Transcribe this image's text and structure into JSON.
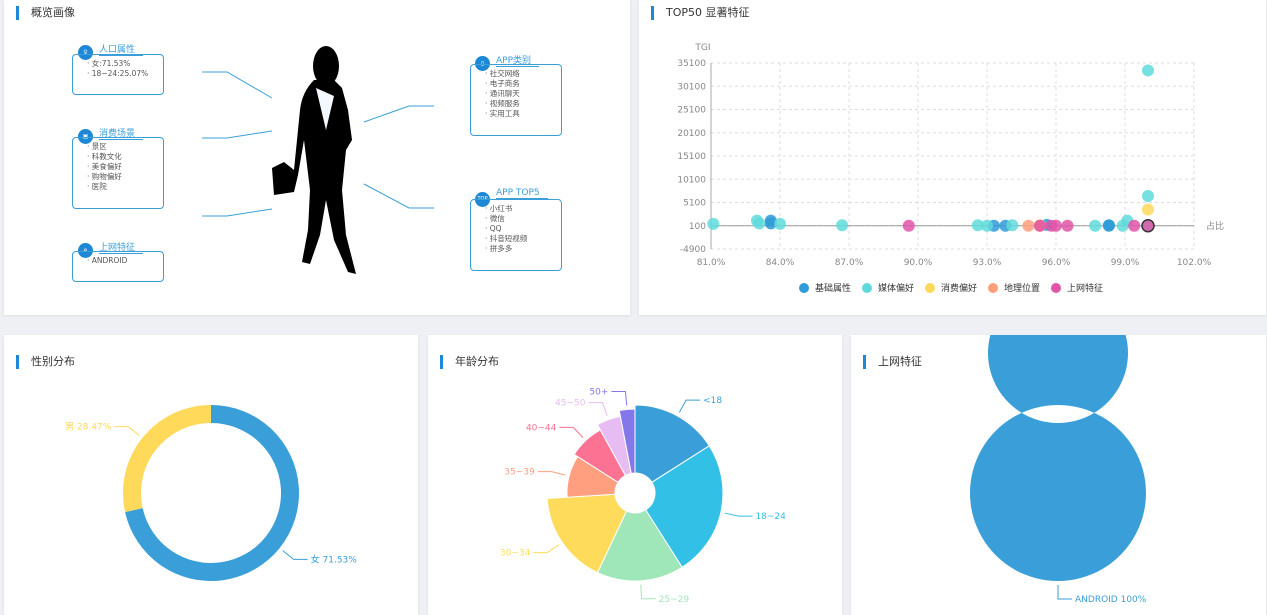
{
  "overview": {
    "title": "概览画像",
    "population": {
      "title": "人口属性",
      "items": [
        "女:71.53%",
        "18~24:25.07%"
      ]
    },
    "consumption": {
      "title": "消费场景",
      "items": [
        "景区",
        "科教文化",
        "美食偏好",
        "购物偏好",
        "医院"
      ]
    },
    "network": {
      "title": "上网特征",
      "items": [
        "ANDROID"
      ]
    },
    "app_category": {
      "title": "APP类别",
      "items": [
        "社交网络",
        "电子商务",
        "通讯聊天",
        "视频服务",
        "实用工具"
      ]
    },
    "app_top5": {
      "title": "APP TOP5",
      "icon_text": "TOP",
      "items": [
        "小红书",
        "微信",
        "QQ",
        "抖音短视频",
        "拼多多"
      ]
    }
  },
  "top50": {
    "title": "TOP50 显著特征"
  },
  "gender": {
    "title": "性别分布"
  },
  "age": {
    "title": "年龄分布"
  },
  "net": {
    "title": "上网特征"
  },
  "chart_data": [
    {
      "type": "scatter",
      "title": "TOP50 显著特征",
      "xlabel": "占比",
      "ylabel": "TGI",
      "xlim": [
        81,
        102
      ],
      "ylim": [
        -4900,
        35100
      ],
      "xticks": [
        "81.0%",
        "84.0%",
        "87.0%",
        "90.0%",
        "93.0%",
        "96.0%",
        "99.0%",
        "102.0%"
      ],
      "yticks": [
        "35100",
        "30100",
        "25100",
        "20100",
        "15100",
        "10100",
        "5100",
        "100",
        "-4900"
      ],
      "legend_position": "bottom",
      "series": [
        {
          "name": "基础属性",
          "color": "#2f9bd8",
          "points": [
            [
              83.6,
              1200
            ],
            [
              83.6,
              600
            ],
            [
              93.3,
              100
            ],
            [
              93.8,
              100
            ],
            [
              95.6,
              300
            ],
            [
              98.3,
              100
            ],
            [
              98.3,
              200
            ]
          ]
        },
        {
          "name": "媒体偏好",
          "color": "#5fdada",
          "points": [
            [
              81.1,
              500
            ],
            [
              83,
              1200
            ],
            [
              83.1,
              600
            ],
            [
              84,
              500
            ],
            [
              86.7,
              200
            ],
            [
              92.6,
              200
            ],
            [
              93,
              100
            ],
            [
              94.1,
              200
            ],
            [
              97.7,
              100
            ],
            [
              98.9,
              100
            ],
            [
              99.1,
              1200
            ],
            [
              100,
              33500
            ],
            [
              100,
              6500
            ],
            [
              100,
              100
            ]
          ]
        },
        {
          "name": "消费偏好",
          "color": "#ffd95a",
          "points": [
            [
              100,
              3600
            ],
            [
              95.3,
              200
            ]
          ]
        },
        {
          "name": "地理位置",
          "color": "#ff9e7d",
          "points": [
            [
              94.8,
              100
            ],
            [
              95.3,
              100
            ]
          ]
        },
        {
          "name": "上网特征",
          "color": "#e055a8",
          "points": [
            [
              89.6,
              100
            ],
            [
              95.3,
              100
            ],
            [
              95.8,
              100
            ],
            [
              96,
              100
            ],
            [
              96.5,
              100
            ],
            [
              99.4,
              100
            ],
            [
              100,
              100
            ]
          ]
        }
      ]
    },
    {
      "type": "pie",
      "title": "性别分布",
      "labels": [
        "女 71.53%",
        "男 28.47%"
      ],
      "values": [
        71.53,
        28.47
      ],
      "colors": [
        "#3a9fd8",
        "#ffd95a"
      ]
    },
    {
      "type": "pie",
      "title": "年龄分布",
      "labels": [
        "<18",
        "18~24",
        "25~29",
        "30~34",
        "35~39",
        "40~44",
        "45~50",
        "50+"
      ],
      "values": [
        16,
        25,
        16,
        17,
        10,
        8,
        5,
        3
      ],
      "colors": [
        "#3a9fd8",
        "#33c0e6",
        "#9fe6b8",
        "#ffdb5c",
        "#ff9f7f",
        "#fb7293",
        "#e7bcf3",
        "#8378ea"
      ]
    },
    {
      "type": "pie",
      "title": "上网特征",
      "labels": [
        "ANDROID 100%"
      ],
      "values": [
        100
      ],
      "colors": [
        "#3a9fd8"
      ]
    }
  ]
}
